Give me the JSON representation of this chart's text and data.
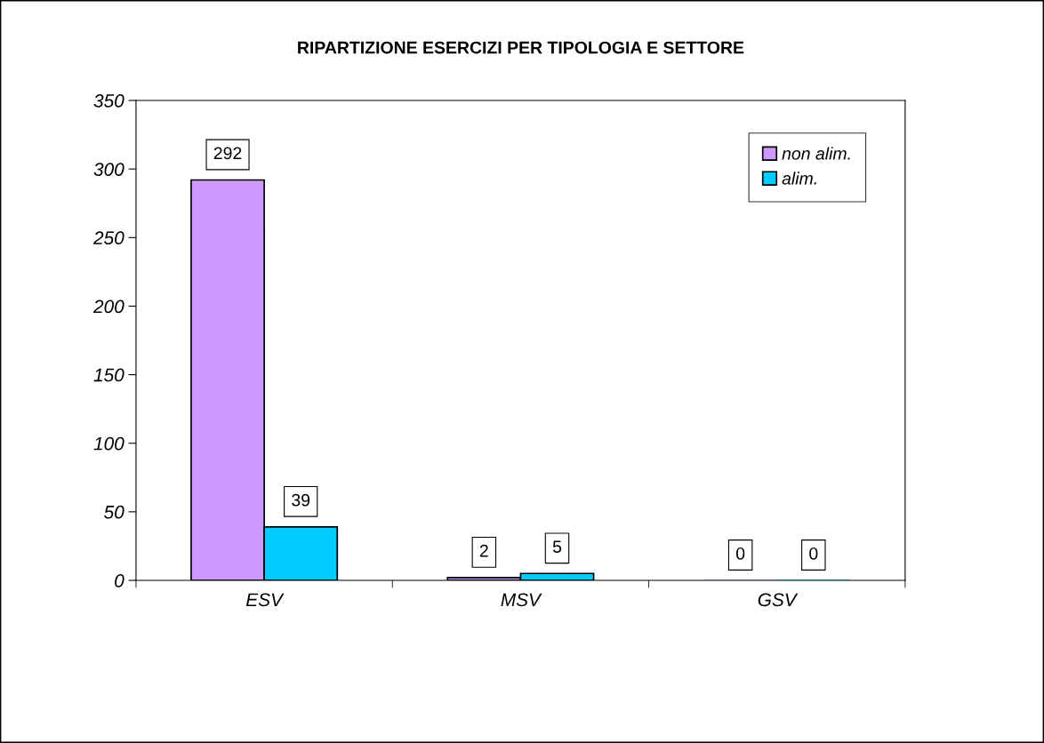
{
  "chart_data": {
    "type": "bar",
    "title": "RIPARTIZIONE ESERCIZI PER TIPOLOGIA E SETTORE",
    "categories": [
      "ESV",
      "MSV",
      "GSV"
    ],
    "series": [
      {
        "name": "non alim.",
        "color": "#cc99ff",
        "values": [
          292,
          2,
          0
        ]
      },
      {
        "name": "alim.",
        "color": "#00ccff",
        "values": [
          39,
          5,
          0
        ]
      }
    ],
    "ylim": [
      0,
      350
    ],
    "yticks": [
      0,
      50,
      100,
      150,
      200,
      250,
      300,
      350
    ],
    "data_labels": true,
    "legend": "top right",
    "grid": false
  }
}
